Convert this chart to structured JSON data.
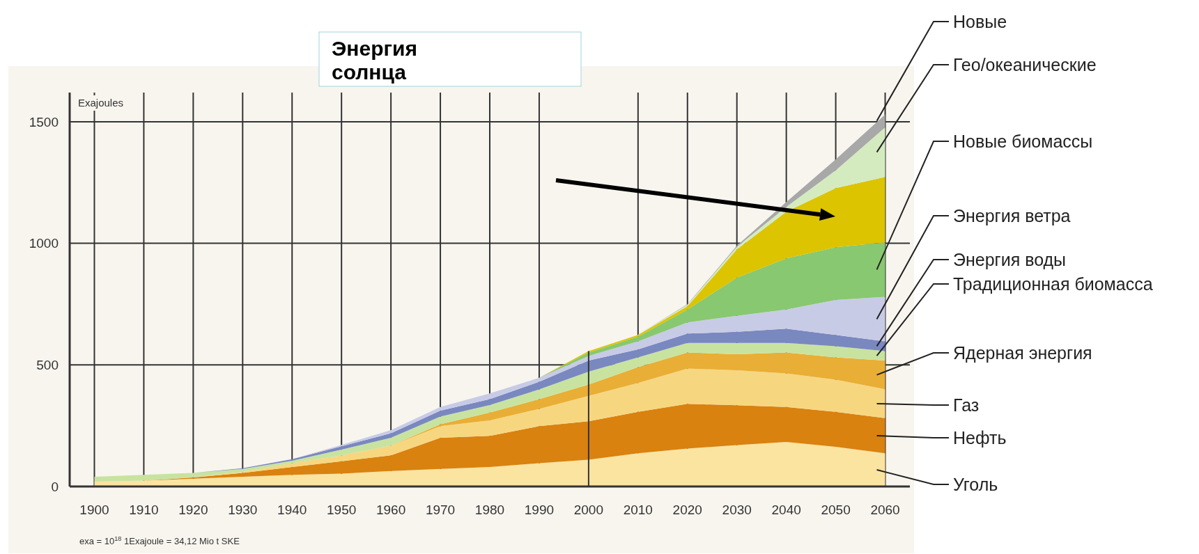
{
  "chart_data": {
    "type": "area",
    "stacked": true,
    "ylabel": "Exajoules",
    "x": [
      1900,
      1910,
      1920,
      1930,
      1940,
      1950,
      1960,
      1970,
      1980,
      1990,
      2000,
      2010,
      2020,
      2030,
      2040,
      2050,
      2060
    ],
    "xlim": [
      1895,
      2065
    ],
    "ylim": [
      0,
      1620
    ],
    "xticks": [
      1900,
      1910,
      1920,
      1930,
      1940,
      1950,
      1960,
      1970,
      1980,
      1990,
      2000,
      2010,
      2020,
      2030,
      2040,
      2050,
      2060
    ],
    "yticks": [
      0,
      500,
      1000,
      1500
    ],
    "grid": true,
    "legend": "right",
    "series": [
      {
        "name": "Уголь",
        "color": "#fbe3a0",
        "values": [
          20,
          24,
          32,
          40,
          48,
          53,
          64,
          72,
          80,
          96,
          110,
          137,
          156,
          170,
          183,
          163,
          137
        ]
      },
      {
        "name": "Нефть",
        "color": "#d9820f",
        "values": [
          0,
          0,
          5,
          16,
          32,
          51,
          64,
          128,
          128,
          152,
          158,
          170,
          184,
          164,
          144,
          144,
          144
        ]
      },
      {
        "name": "Газ",
        "color": "#f7d680",
        "values": [
          0,
          0,
          1,
          4,
          16,
          24,
          40,
          48,
          64,
          71,
          105,
          119,
          145,
          144,
          138,
          132,
          119
        ]
      },
      {
        "name": "Ядерная энергия",
        "color": "#e9ae35",
        "values": [
          0,
          0,
          0,
          0,
          0,
          0,
          0,
          8,
          32,
          40,
          46,
          65,
          66,
          66,
          86,
          92,
          118
        ]
      },
      {
        "name": "Традиционная биомасса",
        "color": "#c8e3a0",
        "values": [
          20,
          24,
          18,
          12,
          10,
          24,
          32,
          32,
          31,
          40,
          53,
          40,
          39,
          46,
          39,
          46,
          39
        ]
      },
      {
        "name": "Энергия воды",
        "color": "#7a88c0",
        "values": [
          0,
          0,
          0,
          3,
          6,
          13,
          19,
          24,
          24,
          32,
          46,
          33,
          39,
          46,
          59,
          46,
          40
        ]
      },
      {
        "name": "Энергия ветра",
        "color": "#c8cbe6",
        "values": [
          0,
          0,
          0,
          0,
          0,
          6,
          13,
          15,
          24,
          16,
          19,
          33,
          46,
          66,
          79,
          144,
          183
        ]
      },
      {
        "name": "Новые биомассы",
        "color": "#88c870",
        "values": [
          0,
          0,
          0,
          0,
          0,
          0,
          0,
          0,
          0,
          0,
          14,
          19,
          53,
          157,
          210,
          217,
          224
        ]
      },
      {
        "color": "#dcc400",
        "values": [
          0,
          0,
          0,
          0,
          0,
          0,
          0,
          0,
          0,
          0,
          6,
          7,
          13,
          116,
          192,
          243,
          269
        ]
      },
      {
        "name": "Гео/океанические",
        "color": "#d4ebc0",
        "values": [
          0,
          0,
          0,
          0,
          0,
          0,
          0,
          0,
          0,
          0,
          0,
          2,
          7,
          10,
          20,
          73,
          204
        ]
      },
      {
        "name": "Новые",
        "color": "#a8a8a8",
        "values": [
          0,
          0,
          0,
          0,
          0,
          0,
          0,
          0,
          0,
          0,
          0,
          0,
          2,
          5,
          20,
          45,
          53
        ]
      }
    ],
    "ref_lines": [
      {
        "axis": "x",
        "value": 2000,
        "color": "#333333"
      }
    ],
    "annotations": [
      "Энергия солнца",
      "exa = 10$^{18}$   1Exajoule = 34,12 Mio t SKE"
    ]
  }
}
